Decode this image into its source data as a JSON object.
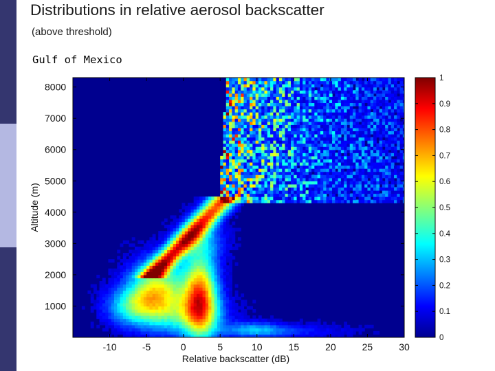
{
  "slide": {
    "title": "Distributions in relative aerosol backscatter",
    "subtitle": "(above threshold)",
    "caption": "Gulf of Mexico",
    "sidebar_colors": [
      "#34366f",
      "#b4b8e2",
      "#34366f"
    ]
  },
  "chart_data": {
    "type": "heatmap",
    "title": "Gulf of Mexico",
    "xlabel": "Relative backscatter (dB)",
    "ylabel": "Altitude (m)",
    "xlim": [
      -15,
      30
    ],
    "ylim": [
      0,
      8300
    ],
    "xticks": [
      -10,
      -5,
      0,
      5,
      10,
      15,
      20,
      25,
      30
    ],
    "yticks": [
      1000,
      2000,
      3000,
      4000,
      5000,
      6000,
      7000,
      8000
    ],
    "x_tick_labels": [
      "-10",
      "-5",
      "0",
      "5",
      "10",
      "15",
      "20",
      "25",
      "30"
    ],
    "y_tick_labels": [
      "1000",
      "2000",
      "3000",
      "4000",
      "5000",
      "6000",
      "7000",
      "8000"
    ],
    "colorbar": {
      "range": [
        0,
        1
      ],
      "ticks": [
        0,
        0.1,
        0.2,
        0.3,
        0.4,
        0.5,
        0.6,
        0.7,
        0.8,
        0.9,
        1
      ],
      "tick_labels": [
        "0",
        "0.1",
        "0.2",
        "0.3",
        "0.4",
        "0.5",
        "0.6",
        "0.7",
        "0.8",
        "0.9",
        "1"
      ],
      "colormap": "jet"
    },
    "grid": false,
    "features": [
      {
        "name": "low-altitude broad cluster",
        "x_center": -5,
        "y_center": 1600,
        "relative_density": 0.7
      },
      {
        "name": "core column",
        "x_center": 2,
        "y_center": 1200,
        "relative_density": 0.85
      },
      {
        "name": "diagonal ridge",
        "from": [
          -4,
          2000
        ],
        "to": [
          5,
          4300
        ],
        "relative_density": 0.75
      },
      {
        "name": "upper-altitude scattered region",
        "x_range": [
          5,
          30
        ],
        "y_range": [
          4300,
          8300
        ],
        "relative_density": 0.35
      }
    ]
  }
}
